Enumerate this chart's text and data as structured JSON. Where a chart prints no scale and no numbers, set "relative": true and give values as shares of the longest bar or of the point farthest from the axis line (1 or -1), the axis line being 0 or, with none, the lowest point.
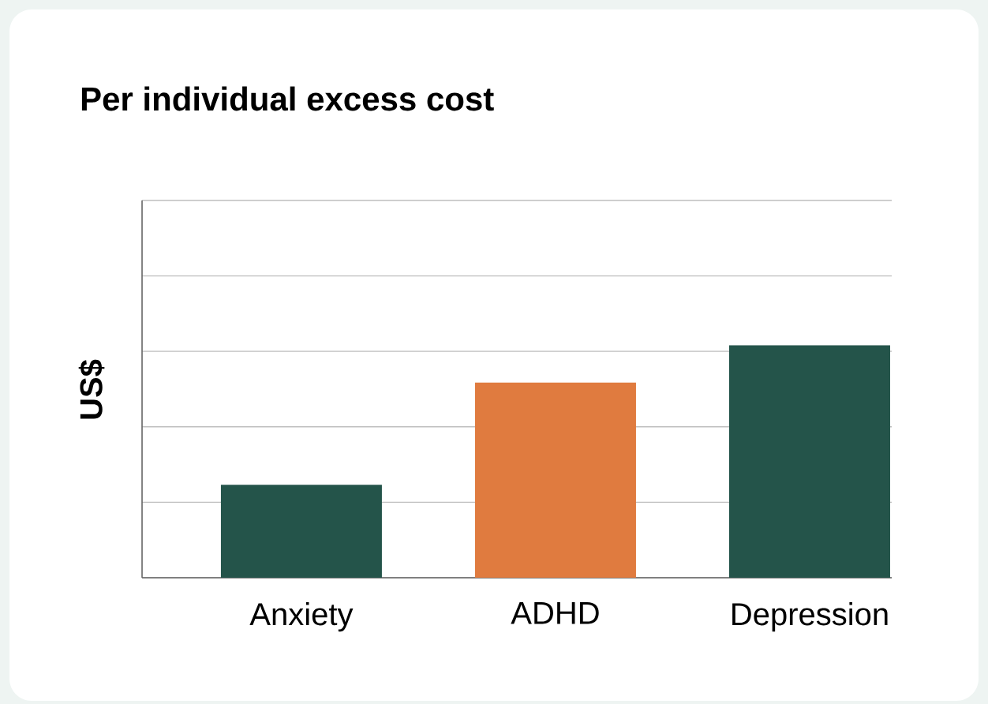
{
  "chart_data": {
    "type": "bar",
    "title": "Per individual excess cost",
    "ylabel": "US$",
    "categories": [
      "Anxiety",
      "ADHD",
      "Depression"
    ],
    "values": [
      0.4,
      0.84,
      1
    ],
    "colors": [
      "#24544a",
      "#e07b3f",
      "#24544a"
    ],
    "relative": true,
    "grid": "y"
  }
}
